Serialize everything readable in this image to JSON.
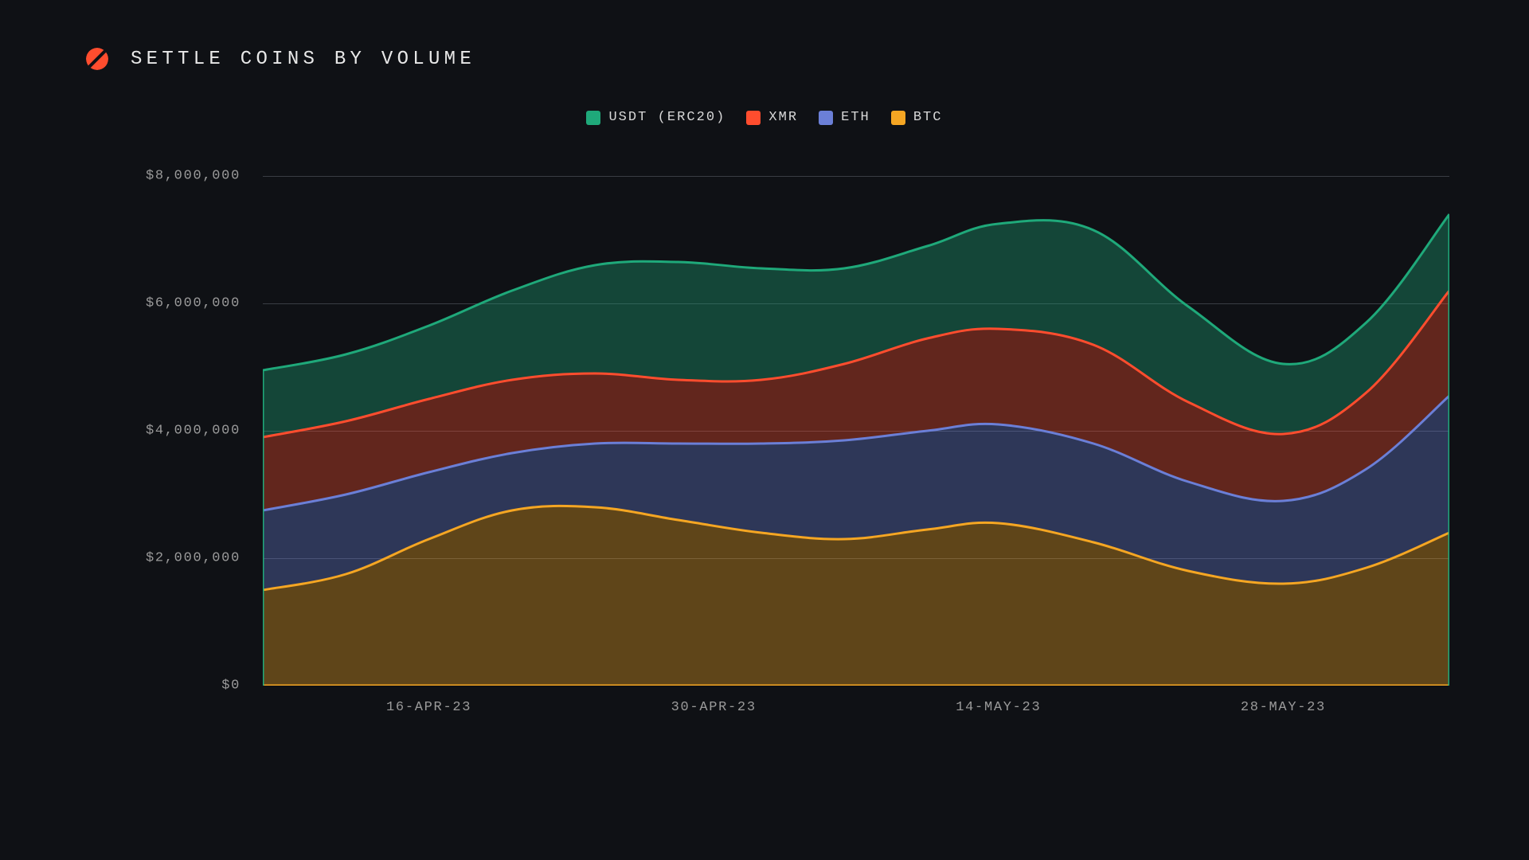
{
  "title": "SETTLE COINS BY VOLUME",
  "chart": {
    "type": "stacked-area",
    "background_color": "#0f1115",
    "grid_color": "#3a3d44",
    "axis_text_color": "#9a9a9a",
    "title_color": "#e8e8e8",
    "title_fontsize": 24,
    "label_fontsize": 17,
    "ylim": [
      0,
      8000000
    ],
    "yticks": [
      0,
      2000000,
      4000000,
      6000000,
      8000000
    ],
    "ytick_labels": [
      "$0",
      "$2,000,000",
      "$4,000,000",
      "$6,000,000",
      "$8,000,000"
    ],
    "xtick_positions": [
      0.14,
      0.38,
      0.62,
      0.86
    ],
    "xtick_labels": [
      "16-APR-23",
      "30-APR-23",
      "14-MAY-23",
      "28-MAY-23"
    ],
    "line_width": 3,
    "fill_opacity": 0.35,
    "legend": [
      {
        "key": "usdt",
        "label": "USDT (ERC20)",
        "color": "#1fa97a"
      },
      {
        "key": "xmr",
        "label": "XMR",
        "color": "#ff4d2e"
      },
      {
        "key": "eth",
        "label": "ETH",
        "color": "#6b7fd7"
      },
      {
        "key": "btc",
        "label": "BTC",
        "color": "#f5a623"
      }
    ],
    "series_colors": {
      "usdt": {
        "stroke": "#1fa97a",
        "fill": "#1fa97a"
      },
      "xmr": {
        "stroke": "#ff4d2e",
        "fill": "#ff4d2e"
      },
      "eth": {
        "stroke": "#6b7fd7",
        "fill": "#6b7fd7"
      },
      "btc": {
        "stroke": "#f5a623",
        "fill": "#f5a623"
      }
    },
    "x_positions": [
      0.0,
      0.07,
      0.14,
      0.21,
      0.28,
      0.35,
      0.42,
      0.49,
      0.56,
      0.62,
      0.7,
      0.78,
      0.86,
      0.93,
      1.0
    ],
    "stacked_values": {
      "btc": [
        1500000,
        1750000,
        2300000,
        2750000,
        2800000,
        2600000,
        2400000,
        2300000,
        2450000,
        2550000,
        2250000,
        1800000,
        1600000,
        1850000,
        2400000
      ],
      "eth": [
        2750000,
        3000000,
        3350000,
        3650000,
        3800000,
        3800000,
        3800000,
        3850000,
        4000000,
        4100000,
        3800000,
        3200000,
        2900000,
        3400000,
        4550000
      ],
      "xmr": [
        3900000,
        4150000,
        4500000,
        4800000,
        4900000,
        4800000,
        4800000,
        5050000,
        5450000,
        5600000,
        5350000,
        4450000,
        3950000,
        4600000,
        6200000
      ],
      "usdt": [
        4950000,
        5200000,
        5650000,
        6200000,
        6600000,
        6650000,
        6550000,
        6550000,
        6900000,
        7250000,
        7150000,
        5950000,
        5050000,
        5700000,
        7400000
      ]
    },
    "logo_colors": {
      "top": "#ff4d2e",
      "bottom": "#ff4d2e",
      "slash": "#0f1115"
    }
  }
}
